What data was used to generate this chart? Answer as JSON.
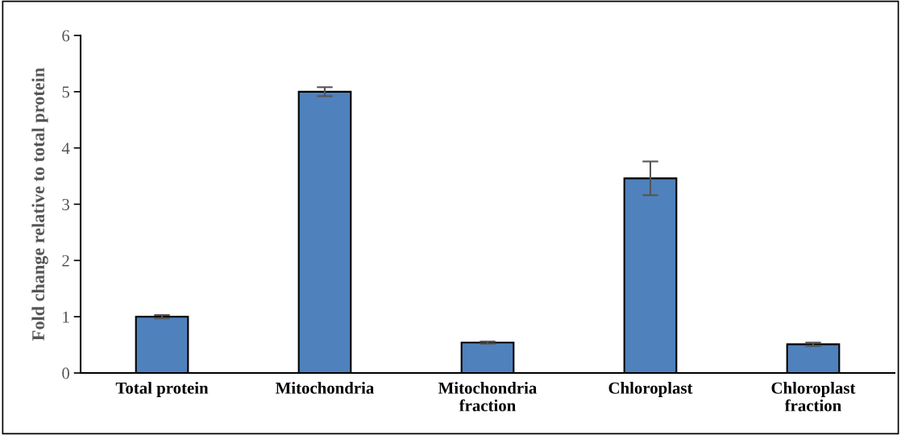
{
  "chart_data": {
    "type": "bar",
    "ylabel": "Fold change relative to total protein",
    "categories": [
      "Total protein",
      "Mitochondria",
      "Mitochondria\nfraction",
      "Chloroplast",
      "Chloroplast\nfraction"
    ],
    "values": [
      1.0,
      5.0,
      0.54,
      3.46,
      0.51
    ],
    "errors": [
      0.03,
      0.08,
      0.02,
      0.3,
      0.03
    ],
    "color": "#4f81bd",
    "ylim": [
      0,
      6
    ],
    "yticks": [
      0,
      1,
      2,
      3,
      4,
      5,
      6
    ],
    "grid": false,
    "legend": false
  }
}
